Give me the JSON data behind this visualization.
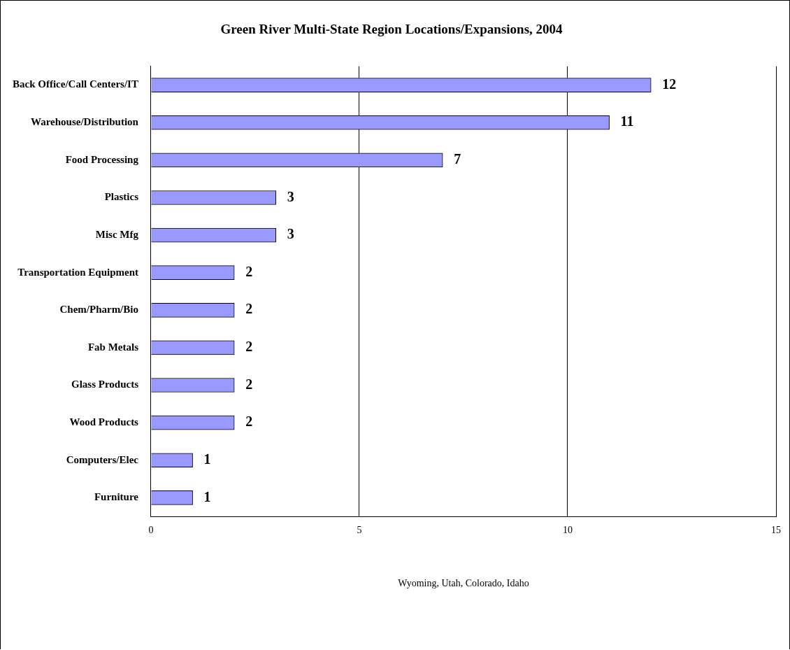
{
  "chart_data": {
    "type": "bar",
    "orientation": "horizontal",
    "title": "Green River Multi-State Region Locations/Expansions, 2004",
    "xlabel": "Wyoming, Utah, Colorado, Idaho",
    "categories": [
      "Back Office/Call Centers/IT",
      "Warehouse/Distribution",
      "Food Processing",
      "Plastics",
      "Misc Mfg",
      "Transportation Equipment",
      "Chem/Pharm/Bio",
      "Fab Metals",
      "Glass Products",
      "Wood Products",
      "Computers/Elec",
      "Furniture"
    ],
    "values": [
      12,
      11,
      7,
      3,
      3,
      2,
      2,
      2,
      2,
      2,
      1,
      1
    ],
    "color": "#9999ff",
    "xlim": [
      0,
      15
    ],
    "xticks": [
      0,
      5,
      10,
      15
    ],
    "grid": "x",
    "data_labels": true,
    "legend": false
  }
}
